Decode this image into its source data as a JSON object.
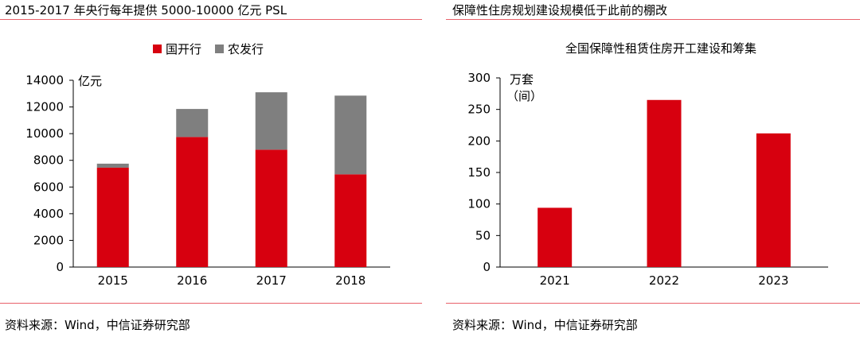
{
  "left_panel": {
    "heading": "2015-2017 年央行每年提供 5000-10000 亿元 PSL",
    "source": "资料来源：Wind，中信证券研究部"
  },
  "right_panel": {
    "heading": "保障性住房规划建设规模低于此前的棚改",
    "source": "资料来源：Wind，中信证券研究部"
  },
  "colors": {
    "red": "#d7000f",
    "gray": "#7f7f7f",
    "rule": "#e8616a"
  },
  "chart_data": [
    {
      "type": "bar",
      "stacked": true,
      "title": "",
      "categories": [
        "2015",
        "2016",
        "2017",
        "2018"
      ],
      "series": [
        {
          "name": "国开行",
          "color": "#d7000f",
          "values": [
            7450,
            9750,
            8800,
            6950
          ]
        },
        {
          "name": "农发行",
          "color": "#7f7f7f",
          "values": [
            300,
            2100,
            4300,
            5900
          ]
        }
      ],
      "ylabel": "亿元",
      "ylim": [
        0,
        14000
      ],
      "yticks": [
        0,
        2000,
        4000,
        6000,
        8000,
        10000,
        12000,
        14000
      ],
      "legend": "top-center",
      "grid": false
    },
    {
      "type": "bar",
      "title": "全国保障性租赁住房开工建设和筹集",
      "categories": [
        "2021",
        "2022",
        "2023"
      ],
      "series": [
        {
          "color": "#d7000f",
          "values": [
            94,
            265,
            212
          ]
        }
      ],
      "ylabel_lines": [
        "万套",
        "（间）"
      ],
      "ylim": [
        0,
        300
      ],
      "yticks": [
        0,
        50,
        100,
        150,
        200,
        250,
        300
      ],
      "legend": "none",
      "grid": false
    }
  ]
}
